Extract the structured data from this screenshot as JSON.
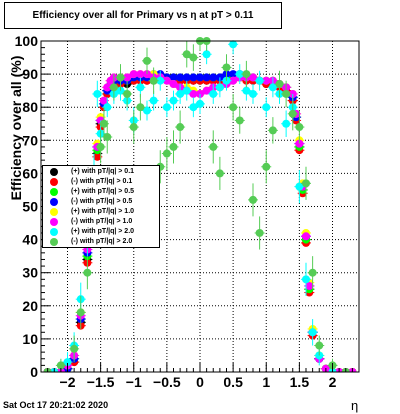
{
  "title": "Efficiency over all for Primary vs   η at pT > 0.11",
  "timestamp": "Sat Oct 17 20:21:02 2020",
  "chart_data": {
    "type": "scatter",
    "title": "Efficiency over all for Primary vs   η at pT > 0.11",
    "xlabel": "η",
    "ylabel": "Efficiency over all (%)",
    "xlim": [
      -2.4,
      2.4
    ],
    "ylim": [
      0,
      100
    ],
    "xticks": [
      -2,
      -1.5,
      -1,
      -0.5,
      0,
      0.5,
      1,
      1.5,
      2
    ],
    "xtick_labels": [
      "−2",
      "−1.5",
      "−1",
      "−0.5",
      "0",
      "0.5",
      "1",
      "1.5",
      "2"
    ],
    "yticks": [
      0,
      10,
      20,
      30,
      40,
      50,
      60,
      70,
      80,
      90,
      100
    ],
    "grid": true,
    "legend_position": "middle-left",
    "series": [
      {
        "name": "(+) with pT/|q| > 0.1",
        "color": "#000000",
        "errors": false,
        "x": [
          -2.3,
          -2.2,
          -2.1,
          -2.0,
          -1.9,
          -1.8,
          -1.7,
          -1.6,
          -1.55,
          -1.5,
          -1.45,
          -1.4,
          -1.35,
          -1.3,
          -1.2,
          -1.1,
          -1.0,
          -0.9,
          -0.8,
          -0.7,
          -0.6,
          -0.5,
          -0.4,
          -0.3,
          -0.2,
          -0.1,
          0.0,
          0.1,
          0.2,
          0.3,
          0.4,
          0.5,
          0.6,
          0.7,
          0.8,
          0.9,
          1.0,
          1.1,
          1.2,
          1.3,
          1.4,
          1.45,
          1.5,
          1.55,
          1.6,
          1.65,
          1.7,
          1.8,
          1.9,
          2.0,
          2.1,
          2.2,
          2.3
        ],
        "y": [
          0,
          0,
          0,
          1,
          3,
          15,
          34,
          56,
          66,
          75,
          80,
          84,
          86,
          87,
          87,
          87,
          88,
          88,
          88,
          88,
          89,
          89,
          89,
          88,
          88,
          88,
          88,
          88,
          88,
          88,
          88,
          89,
          89,
          89,
          88,
          88,
          87,
          87,
          86,
          85,
          82,
          77,
          68,
          55,
          40,
          25,
          12,
          4,
          1,
          0,
          0,
          0,
          0
        ]
      },
      {
        "name": "(-) with pT/|q| > 0.1",
        "color": "#ff0000",
        "errors": false,
        "x": [
          -2.3,
          -2.2,
          -2.1,
          -2.0,
          -1.9,
          -1.8,
          -1.7,
          -1.6,
          -1.55,
          -1.5,
          -1.45,
          -1.4,
          -1.35,
          -1.3,
          -1.2,
          -1.1,
          -1.0,
          -0.9,
          -0.8,
          -0.7,
          -0.6,
          -0.5,
          -0.4,
          -0.3,
          -0.2,
          -0.1,
          0.0,
          0.1,
          0.2,
          0.3,
          0.4,
          0.5,
          0.6,
          0.7,
          0.8,
          0.9,
          1.0,
          1.1,
          1.2,
          1.3,
          1.4,
          1.45,
          1.5,
          1.55,
          1.6,
          1.65,
          1.7,
          1.8,
          1.9,
          2.0,
          2.1,
          2.2,
          2.3
        ],
        "y": [
          0,
          0,
          0,
          1,
          3,
          14,
          33,
          55,
          65,
          74,
          80,
          84,
          86,
          87,
          87,
          88,
          88,
          88,
          88,
          89,
          89,
          89,
          88,
          88,
          88,
          88,
          88,
          88,
          88,
          88,
          89,
          89,
          89,
          88,
          88,
          88,
          87,
          87,
          86,
          85,
          82,
          76,
          67,
          54,
          39,
          24,
          11,
          4,
          1,
          0,
          0,
          0,
          0
        ]
      },
      {
        "name": "(+) with pT/|q| > 0.5",
        "color": "#00ff00",
        "errors": false,
        "x": [
          -2.3,
          -2.2,
          -2.1,
          -2.0,
          -1.9,
          -1.8,
          -1.7,
          -1.6,
          -1.55,
          -1.5,
          -1.45,
          -1.4,
          -1.35,
          -1.3,
          -1.2,
          -1.1,
          -1.0,
          -0.9,
          -0.8,
          -0.7,
          -0.6,
          -0.5,
          -0.4,
          -0.3,
          -0.2,
          -0.1,
          0.0,
          0.1,
          0.2,
          0.3,
          0.4,
          0.5,
          0.6,
          0.7,
          0.8,
          0.9,
          1.0,
          1.1,
          1.2,
          1.3,
          1.4,
          1.45,
          1.5,
          1.55,
          1.6,
          1.65,
          1.7,
          1.8,
          1.9,
          2.0,
          2.1,
          2.2,
          2.3
        ],
        "y": [
          0,
          0,
          0,
          1,
          4,
          16,
          35,
          57,
          67,
          76,
          81,
          85,
          87,
          88,
          88,
          88,
          89,
          89,
          89,
          89,
          89,
          89,
          89,
          89,
          89,
          89,
          89,
          89,
          89,
          89,
          89,
          89,
          89,
          89,
          89,
          88,
          88,
          88,
          87,
          86,
          83,
          77,
          68,
          55,
          40,
          25,
          12,
          4,
          1,
          0,
          0,
          0,
          0
        ]
      },
      {
        "name": "(-) with pT/|q| > 0.5",
        "color": "#0000ff",
        "errors": false,
        "x": [
          -2.3,
          -2.2,
          -2.1,
          -2.0,
          -1.9,
          -1.8,
          -1.7,
          -1.6,
          -1.55,
          -1.5,
          -1.45,
          -1.4,
          -1.35,
          -1.3,
          -1.2,
          -1.1,
          -1.0,
          -0.9,
          -0.8,
          -0.7,
          -0.6,
          -0.5,
          -0.4,
          -0.3,
          -0.2,
          -0.1,
          0.0,
          0.1,
          0.2,
          0.3,
          0.4,
          0.5,
          0.6,
          0.7,
          0.8,
          0.9,
          1.0,
          1.1,
          1.2,
          1.3,
          1.4,
          1.45,
          1.5,
          1.55,
          1.6,
          1.65,
          1.7,
          1.8,
          1.9,
          2.0,
          2.1,
          2.2,
          2.3
        ],
        "y": [
          0,
          0,
          0,
          1,
          4,
          16,
          36,
          58,
          68,
          76,
          81,
          85,
          87,
          88,
          88,
          88,
          89,
          89,
          89,
          90,
          90,
          89,
          89,
          89,
          89,
          89,
          89,
          89,
          89,
          89,
          90,
          90,
          90,
          89,
          89,
          88,
          88,
          88,
          87,
          86,
          83,
          77,
          69,
          56,
          41,
          26,
          12,
          4,
          1,
          0,
          0,
          0,
          0
        ]
      },
      {
        "name": "(+) with pT/|q| > 1.0",
        "color": "#ffff00",
        "errors": false,
        "x": [
          -2.3,
          -2.2,
          -2.1,
          -2.0,
          -1.9,
          -1.8,
          -1.7,
          -1.6,
          -1.55,
          -1.5,
          -1.45,
          -1.4,
          -1.35,
          -1.3,
          -1.2,
          -1.1,
          -1.0,
          -0.9,
          -0.8,
          -0.7,
          -0.6,
          -0.5,
          -0.4,
          -0.3,
          -0.2,
          -0.1,
          0.0,
          0.1,
          0.2,
          0.3,
          0.4,
          0.5,
          0.6,
          0.7,
          0.8,
          0.9,
          1.0,
          1.1,
          1.2,
          1.3,
          1.4,
          1.45,
          1.5,
          1.55,
          1.6,
          1.65,
          1.7,
          1.8,
          1.9,
          2.0,
          2.1,
          2.2,
          2.3
        ],
        "y": [
          0,
          0,
          0,
          2,
          5,
          18,
          38,
          60,
          69,
          77,
          82,
          86,
          88,
          89,
          89,
          89,
          90,
          90,
          90,
          90,
          89,
          88,
          87,
          86,
          86,
          85,
          84,
          85,
          86,
          86,
          87,
          88,
          89,
          89,
          89,
          88,
          88,
          88,
          87,
          86,
          84,
          78,
          70,
          57,
          42,
          27,
          13,
          5,
          1,
          0,
          0,
          0,
          0
        ]
      },
      {
        "name": "(-) with pT/|q| > 1.0",
        "color": "#ff00ff",
        "errors": false,
        "x": [
          -2.3,
          -2.2,
          -2.1,
          -2.0,
          -1.9,
          -1.8,
          -1.7,
          -1.6,
          -1.55,
          -1.5,
          -1.45,
          -1.4,
          -1.35,
          -1.3,
          -1.2,
          -1.1,
          -1.0,
          -0.9,
          -0.8,
          -0.7,
          -0.6,
          -0.5,
          -0.4,
          -0.3,
          -0.2,
          -0.1,
          0.0,
          0.1,
          0.2,
          0.3,
          0.4,
          0.5,
          0.6,
          0.7,
          0.8,
          0.9,
          1.0,
          1.1,
          1.2,
          1.3,
          1.4,
          1.45,
          1.5,
          1.55,
          1.6,
          1.65,
          1.7,
          1.8,
          1.9,
          2.0,
          2.1,
          2.2,
          2.3
        ],
        "y": [
          0,
          0,
          0,
          2,
          5,
          17,
          37,
          59,
          68,
          76,
          82,
          86,
          88,
          89,
          89,
          89,
          90,
          90,
          90,
          89,
          89,
          88,
          87,
          86,
          85,
          84,
          84,
          85,
          86,
          86,
          87,
          88,
          89,
          89,
          89,
          88,
          88,
          88,
          87,
          86,
          84,
          78,
          69,
          56,
          41,
          26,
          12,
          4,
          1,
          0,
          0,
          0,
          0
        ]
      },
      {
        "name": "(+) with pT/|q| > 2.0",
        "color": "#00ffff",
        "errors": true,
        "x": [
          -2.2,
          -2.0,
          -1.9,
          -1.8,
          -1.7,
          -1.6,
          -1.55,
          -1.5,
          -1.4,
          -1.3,
          -1.2,
          -1.1,
          -1.0,
          -0.9,
          -0.8,
          -0.7,
          -0.6,
          -0.5,
          -0.4,
          -0.3,
          -0.2,
          -0.1,
          0.0,
          0.1,
          0.2,
          0.3,
          0.4,
          0.5,
          0.6,
          0.7,
          0.8,
          0.9,
          1.0,
          1.1,
          1.2,
          1.3,
          1.4,
          1.5,
          1.6,
          1.7,
          1.8,
          2.0
        ],
        "y": [
          0,
          3,
          8,
          22,
          40,
          61,
          84,
          72,
          80,
          84,
          85,
          82,
          76,
          86,
          79,
          82,
          88,
          80,
          82,
          84,
          85,
          80,
          81,
          96,
          84,
          86,
          88,
          99,
          90,
          85,
          84,
          88,
          80,
          86,
          84,
          75,
          80,
          56,
          28,
          12,
          5,
          0
        ],
        "err": [
          1,
          3,
          4,
          5,
          5,
          5,
          4,
          4,
          3,
          3,
          3,
          3,
          4,
          3,
          3,
          3,
          3,
          3,
          3,
          3,
          3,
          3,
          3,
          3,
          3,
          3,
          3,
          3,
          3,
          3,
          3,
          3,
          3,
          3,
          3,
          4,
          4,
          5,
          5,
          4,
          3,
          1
        ]
      },
      {
        "name": "(-) with pT/|q| > 2.0",
        "color": "#55cc55",
        "errors": true,
        "x": [
          -2.3,
          -2.1,
          -1.9,
          -1.8,
          -1.7,
          -1.6,
          -1.5,
          -1.45,
          -1.4,
          -1.3,
          -1.2,
          -1.1,
          -1.0,
          -0.9,
          -0.8,
          -0.7,
          -0.6,
          -0.5,
          -0.4,
          -0.3,
          -0.2,
          -0.1,
          0.0,
          0.1,
          0.2,
          0.3,
          0.4,
          0.5,
          0.6,
          0.7,
          0.8,
          0.9,
          1.0,
          1.1,
          1.2,
          1.3,
          1.4,
          1.5,
          1.6,
          1.7,
          1.8,
          2.0,
          2.2
        ],
        "y": [
          0,
          2,
          7,
          18,
          30,
          52,
          68,
          75,
          71,
          86,
          89,
          84,
          74,
          80,
          94,
          88,
          62,
          66,
          68,
          74,
          96,
          95,
          100,
          100,
          68,
          60,
          92,
          80,
          76,
          90,
          52,
          42,
          62,
          73,
          87,
          84,
          78,
          74,
          57,
          30,
          8,
          2,
          0
        ],
        "err": [
          1,
          2,
          4,
          5,
          5,
          6,
          5,
          5,
          5,
          4,
          4,
          4,
          5,
          4,
          4,
          4,
          5,
          5,
          5,
          5,
          4,
          4,
          3,
          3,
          5,
          5,
          4,
          4,
          4,
          4,
          5,
          5,
          5,
          4,
          4,
          4,
          5,
          5,
          5,
          5,
          3,
          2,
          1
        ]
      }
    ]
  }
}
